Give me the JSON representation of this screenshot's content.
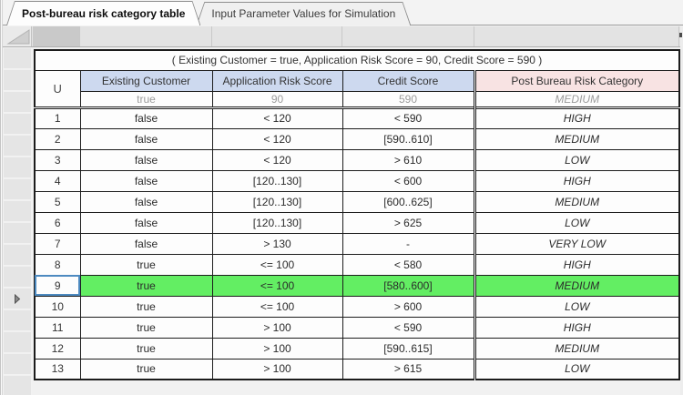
{
  "tabs": [
    {
      "label": "Post-bureau risk category table",
      "active": true
    },
    {
      "label": "Input Parameter Values for Simulation",
      "active": false
    }
  ],
  "table": {
    "caption": "( Existing Customer = true, Application Risk Score = 90, Credit Score = 590 )",
    "hit_policy": "U",
    "columns": [
      {
        "label": "Existing Customer",
        "kind": "input"
      },
      {
        "label": "Application Risk Score",
        "kind": "input"
      },
      {
        "label": "Credit Score",
        "kind": "input"
      },
      {
        "label": "Post Bureau Risk Category",
        "kind": "output"
      }
    ],
    "test_values": [
      "true",
      "90",
      "590",
      "MEDIUM"
    ],
    "rows": [
      {
        "num": "1",
        "cells": [
          "false",
          "< 120",
          "< 590",
          "HIGH"
        ],
        "highlighted": false,
        "selected": false
      },
      {
        "num": "2",
        "cells": [
          "false",
          "< 120",
          "[590..610]",
          "MEDIUM"
        ],
        "highlighted": false,
        "selected": false
      },
      {
        "num": "3",
        "cells": [
          "false",
          "< 120",
          "> 610",
          "LOW"
        ],
        "highlighted": false,
        "selected": false
      },
      {
        "num": "4",
        "cells": [
          "false",
          "[120..130]",
          "< 600",
          "HIGH"
        ],
        "highlighted": false,
        "selected": false
      },
      {
        "num": "5",
        "cells": [
          "false",
          "[120..130]",
          "[600..625]",
          "MEDIUM"
        ],
        "highlighted": false,
        "selected": false
      },
      {
        "num": "6",
        "cells": [
          "false",
          "[120..130]",
          "> 625",
          "LOW"
        ],
        "highlighted": false,
        "selected": false
      },
      {
        "num": "7",
        "cells": [
          "false",
          "> 130",
          "-",
          "VERY LOW"
        ],
        "highlighted": false,
        "selected": false
      },
      {
        "num": "8",
        "cells": [
          "true",
          "<= 100",
          "< 580",
          "HIGH"
        ],
        "highlighted": false,
        "selected": false
      },
      {
        "num": "9",
        "cells": [
          "true",
          "<= 100",
          "[580..600]",
          "MEDIUM"
        ],
        "highlighted": true,
        "selected": true
      },
      {
        "num": "10",
        "cells": [
          "true",
          "<= 100",
          "> 600",
          "LOW"
        ],
        "highlighted": false,
        "selected": false
      },
      {
        "num": "11",
        "cells": [
          "true",
          "> 100",
          "< 590",
          "HIGH"
        ],
        "highlighted": false,
        "selected": false
      },
      {
        "num": "12",
        "cells": [
          "true",
          "> 100",
          "[590..615]",
          "MEDIUM"
        ],
        "highlighted": false,
        "selected": false
      },
      {
        "num": "13",
        "cells": [
          "true",
          "> 100",
          "> 615",
          "LOW"
        ],
        "highlighted": false,
        "selected": false
      }
    ]
  },
  "gutter": {
    "cell_count": 16,
    "marker_index": 11,
    "marker_icon": "row-marker-icon"
  },
  "corner_icon": "select-all-corner-icon",
  "colors": {
    "input_header_bg": "#cdd9ef",
    "output_header_bg": "#f8e3e3",
    "highlight_green": "#63ee63",
    "selection_blue": "#4d8ac0"
  }
}
